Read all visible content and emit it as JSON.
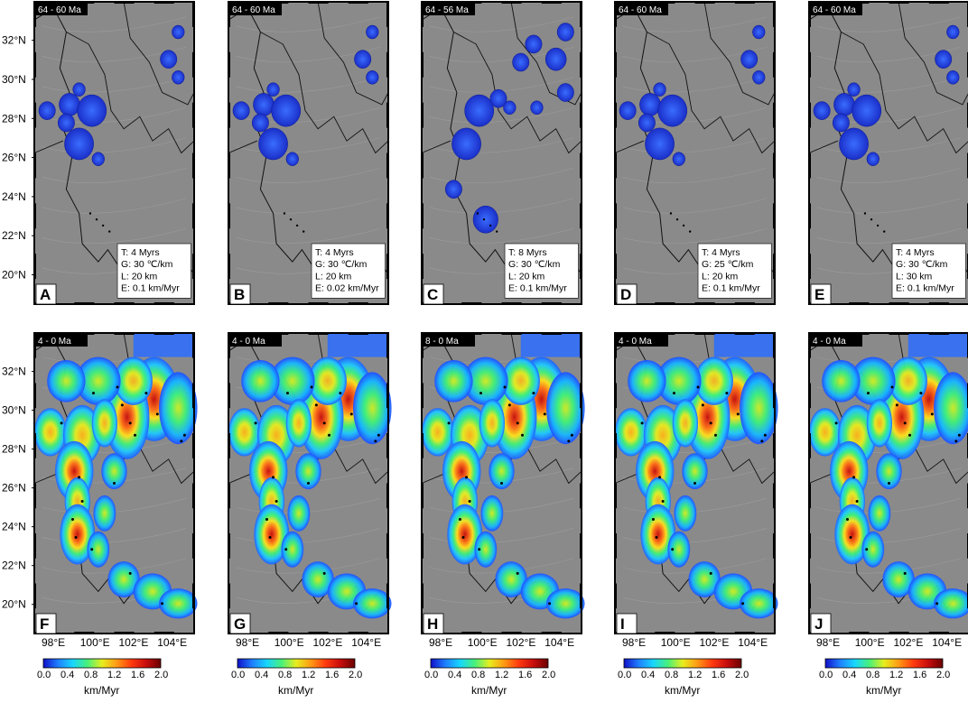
{
  "lat_labels": [
    "32°N",
    "30°N",
    "28°N",
    "26°N",
    "24°N",
    "22°N",
    "20°N"
  ],
  "lon_labels": [
    "98°E",
    "100°E",
    "102°E",
    "104°E"
  ],
  "top_panels": [
    {
      "letter": "A",
      "time": "64 - 60 Ma",
      "params": [
        "T: 4 Myrs",
        "G: 30 ℃/km",
        "L: 20 km",
        "E: 0.1 km/Myr"
      ]
    },
    {
      "letter": "B",
      "time": "64 - 60 Ma",
      "params": [
        "T: 4 Myrs",
        "G: 30 ℃/km",
        "L: 20 km",
        "E: 0.02 km/Myr"
      ]
    },
    {
      "letter": "C",
      "time": "64 - 56 Ma",
      "params": [
        "T: 8 Myrs",
        "G: 30 ℃/km",
        "L: 20 km",
        "E: 0.1 km/Myr"
      ]
    },
    {
      "letter": "D",
      "time": "64 - 60 Ma",
      "params": [
        "T: 4 Myrs",
        "G: 25 ℃/km",
        "L: 20 km",
        "E: 0.1 km/Myr"
      ]
    },
    {
      "letter": "E",
      "time": "64 - 60 Ma",
      "params": [
        "T: 4 Myrs",
        "G: 30 ℃/km",
        "L: 30 km",
        "E: 0.1 km/Myr"
      ]
    }
  ],
  "bottom_panels": [
    {
      "letter": "F",
      "time": "4 - 0 Ma"
    },
    {
      "letter": "G",
      "time": "4 - 0 Ma"
    },
    {
      "letter": "H",
      "time": "8 - 0 Ma"
    },
    {
      "letter": "I",
      "time": "4 - 0 Ma"
    },
    {
      "letter": "J",
      "time": "4 - 0 Ma"
    }
  ],
  "colorbar": {
    "ticks": [
      "0.0",
      "0.4",
      "0.8",
      "1.2",
      "1.6",
      "2.0"
    ],
    "unit": "km/Myr",
    "colors": [
      "#1010c8",
      "#1f7fff",
      "#17d6ff",
      "#47f07a",
      "#e7ee1e",
      "#ff9a14",
      "#ff3a0e",
      "#c80d0d",
      "#6b0000"
    ]
  },
  "colors": {
    "map_bg": "#8a8a8a",
    "boundary": "#111111",
    "blob_top": "#2a4fe0"
  }
}
